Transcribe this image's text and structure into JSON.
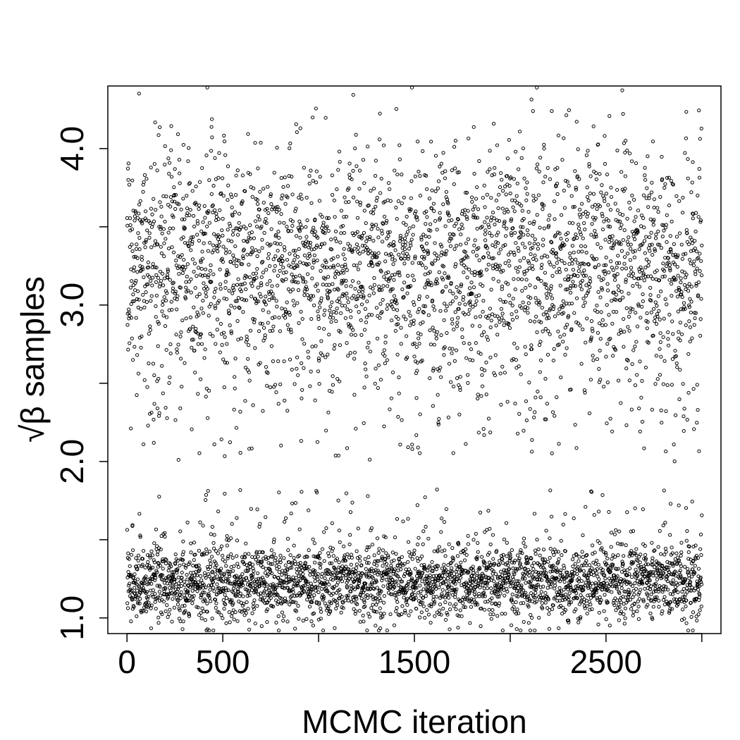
{
  "chart_data": {
    "type": "scatter",
    "title": "",
    "xlabel": "MCMC iteration",
    "ylabel": "√β samples",
    "xlim": [
      -100,
      3100
    ],
    "ylim": [
      0.9,
      4.4
    ],
    "x_ticks": [
      0,
      500,
      1000,
      1500,
      2000,
      2500,
      3000
    ],
    "x_tick_labels": [
      "0",
      "500",
      "",
      "1500",
      "",
      "2500",
      ""
    ],
    "y_ticks": [
      1.0,
      1.5,
      2.0,
      2.5,
      3.0,
      3.5,
      4.0
    ],
    "y_tick_labels": [
      "1.0",
      "",
      "2.0",
      "",
      "3.0",
      "",
      "4.0"
    ],
    "grid": false,
    "n_iterations": 3000,
    "series": [
      {
        "values_description_x": "iteration index 1..3000",
        "modes": [
          {
            "center": 1.23,
            "spread": 0.12,
            "share": 0.5
          },
          {
            "center": 3.25,
            "spread": 0.38,
            "share": 0.5
          }
        ],
        "marker": "open-circle",
        "color": "#000000"
      }
    ]
  }
}
